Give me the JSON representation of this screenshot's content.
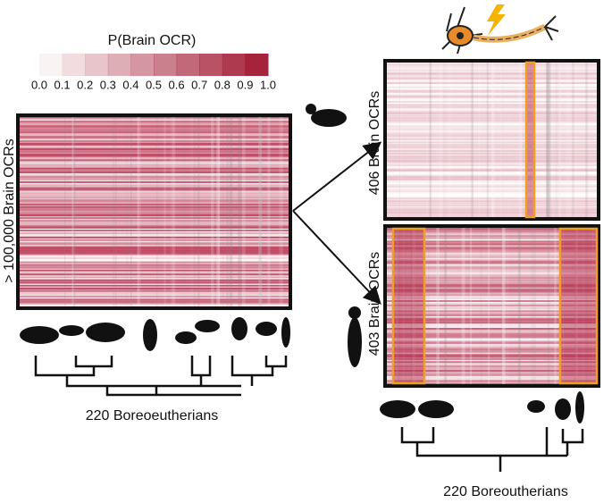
{
  "legend": {
    "title": "P(Brain OCR)",
    "ticks": [
      "0.0",
      "0.1",
      "0.2",
      "0.3",
      "0.4",
      "0.5",
      "0.6",
      "0.7",
      "0.8",
      "0.9",
      "1.0"
    ]
  },
  "left_panel": {
    "row_label": "> 100,000 Brain OCRs",
    "species_label": "220 Boreoeutherians"
  },
  "right_top": {
    "row_label": "406 Brain OCRs"
  },
  "right_bottom": {
    "row_label": "403 Brain OCRs",
    "species_label": "220 Boreoutherians"
  }
}
